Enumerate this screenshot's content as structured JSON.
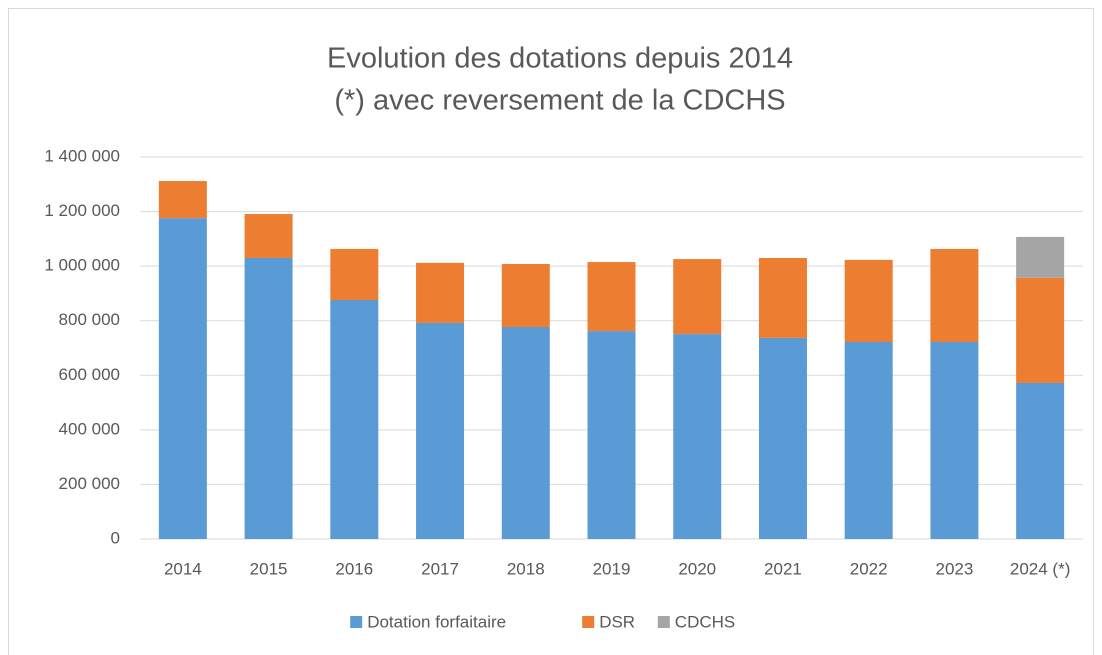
{
  "chart_data": {
    "type": "stacked_bar",
    "title": [
      "Evolution des dotations depuis 2014",
      "(*) avec reversement de la CDCHS"
    ],
    "categories": [
      "2014",
      "2015",
      "2016",
      "2017",
      "2018",
      "2019",
      "2020",
      "2021",
      "2022",
      "2023",
      "2024 (*)"
    ],
    "series": [
      {
        "name": "Dotation forfaitaire",
        "color": "#5b9bd5",
        "values": [
          1176000,
          1030000,
          876000,
          792000,
          777000,
          762000,
          751000,
          737000,
          722000,
          722000,
          572000
        ]
      },
      {
        "name": "DSR",
        "color": "#ed7d31",
        "values": [
          136000,
          161000,
          187000,
          220000,
          231000,
          253000,
          275000,
          293000,
          301000,
          341000,
          385000
        ]
      },
      {
        "name": "CDCHS",
        "color": "#a5a5a5",
        "values": [
          null,
          null,
          null,
          null,
          null,
          null,
          null,
          null,
          null,
          null,
          150000
        ]
      }
    ],
    "ylim": [
      0,
      1400000
    ],
    "yticks": [
      0,
      {
        "value": 200000,
        "label": "200 000"
      },
      {
        "value": 400000,
        "label": "400 000"
      },
      {
        "value": 600000,
        "label": "600 000"
      },
      {
        "value": 800000,
        "label": "800 000"
      },
      {
        "value": 1000000,
        "label": "1 000 000"
      },
      {
        "value": 1200000,
        "label": "1 200 000"
      },
      {
        "value": 1400000,
        "label": "1 400 000"
      }
    ],
    "grid": true,
    "legend": "bottom"
  }
}
